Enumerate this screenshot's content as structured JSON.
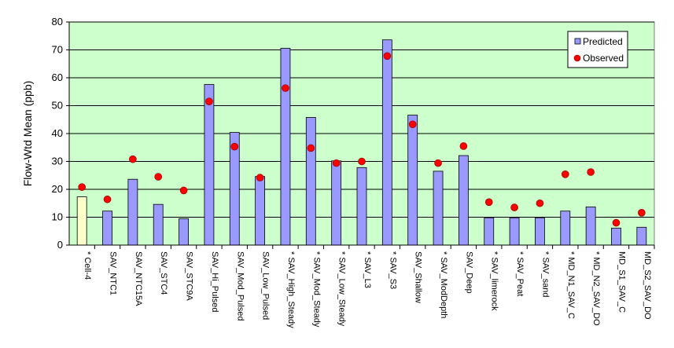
{
  "chart_data": {
    "type": "bar",
    "ylabel": "Flow-Wtd Mean (ppb)",
    "xlabel": "",
    "title": "",
    "ylim": [
      0,
      80
    ],
    "yticks": [
      0,
      10,
      20,
      30,
      40,
      50,
      60,
      70,
      80
    ],
    "grid": true,
    "legend_position": "top-right",
    "categories": [
      "* Cell-4",
      "SAV_NTC1",
      "SAV_NTC15A",
      "SAV_STC4",
      "SAV_STC9A",
      "SAV_Hi_Pulsed",
      "SAV_Mod_Pulsed",
      "SAV_Low_Pulsed",
      "* SAV_High_Steady",
      "* SAV_Mod_Steady",
      "* SAV_Low_Steady",
      "* SAV_L3",
      "* SAV_S3",
      "SAV_Shallow",
      "* SAV_ModDepth",
      "SAV_Deep",
      "* SAV_limerock",
      "* SAV_Peat",
      "* SAV_sand",
      "* MD_N1_SAV_C",
      "* MD_N2_SAV_DO",
      "MD_S1_SAV_C",
      "MD_S2_SAV_DO"
    ],
    "series": [
      {
        "name": "Predicted",
        "kind": "bar",
        "values": [
          17.3,
          12.2,
          23.6,
          14.6,
          9.5,
          57.6,
          40.4,
          24.6,
          70.6,
          45.8,
          30.2,
          27.8,
          73.6,
          46.6,
          26.5,
          32.1,
          9.8,
          9.8,
          9.8,
          12.2,
          13.7,
          6.1,
          6.4
        ],
        "highlight_index": 0
      },
      {
        "name": "Observed",
        "kind": "marker",
        "values": [
          20.8,
          16.4,
          30.8,
          24.5,
          19.6,
          51.5,
          35.3,
          24.2,
          56.3,
          34.8,
          29.4,
          30.0,
          67.8,
          43.3,
          29.4,
          35.5,
          15.4,
          13.5,
          15.0,
          25.4,
          26.2,
          8.0,
          11.6
        ]
      }
    ],
    "colors": {
      "plot_background": "#ccffcc",
      "bar": "#9999ff",
      "bar_highlight": "#ffffcc",
      "marker": "#ff0000",
      "gridline": "#000000"
    }
  }
}
